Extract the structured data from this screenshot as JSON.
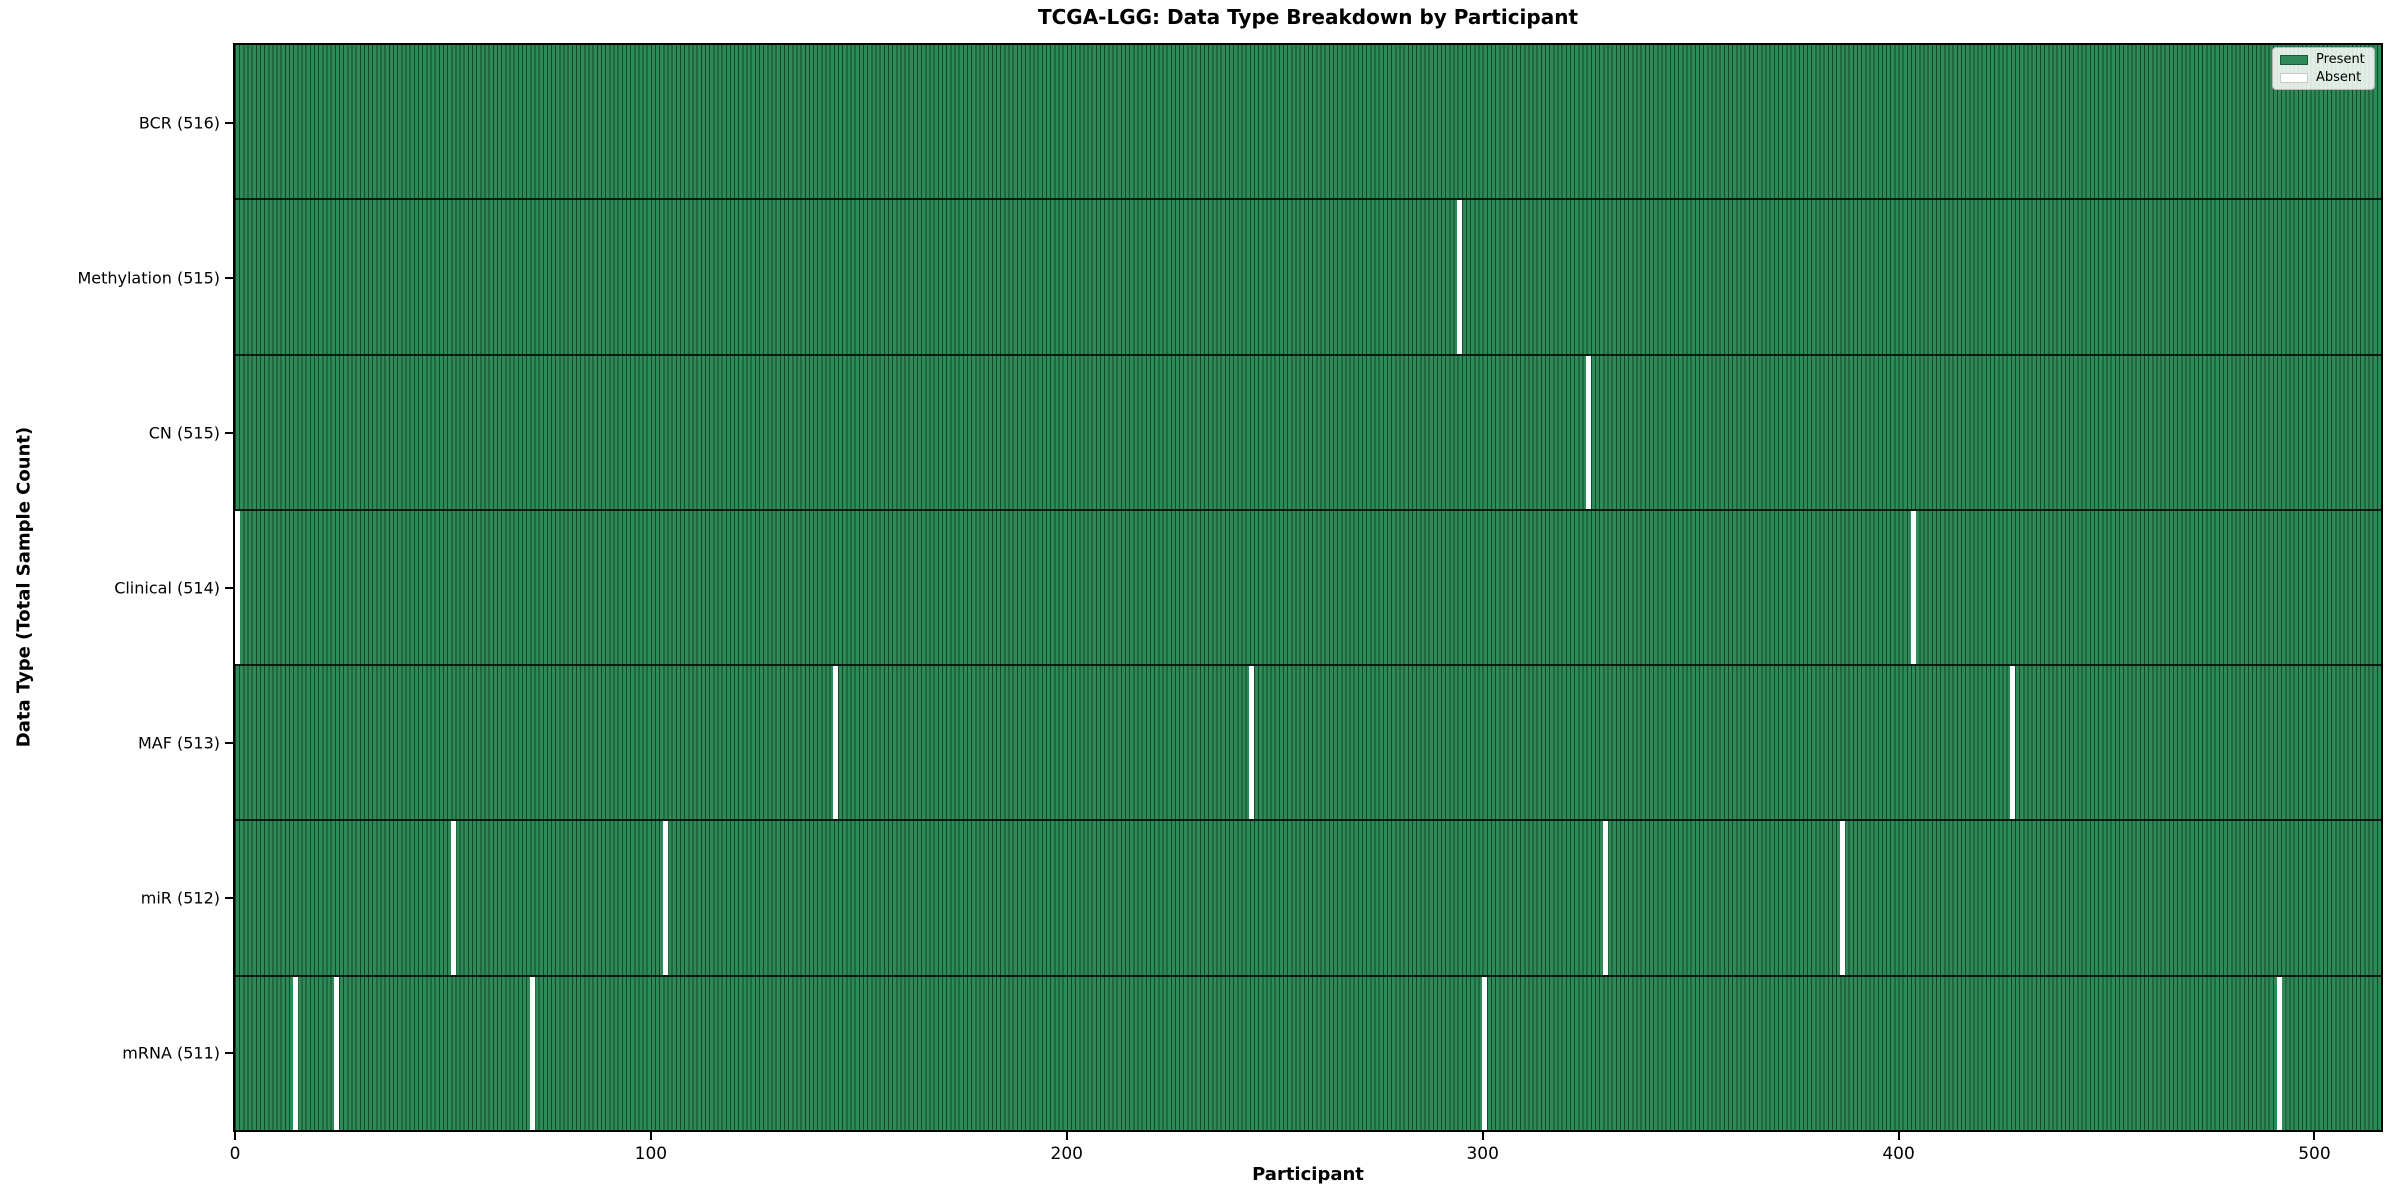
{
  "title": "TCGA-LGG: Data Type Breakdown by Participant",
  "xlabel": "Participant",
  "ylabel": "Data Type (Total Sample Count)",
  "legend": {
    "present_label": "Present",
    "absent_label": "Absent"
  },
  "colors": {
    "present": "#2E8B57",
    "absent": "#FFFFFF",
    "bar_edge": "rgba(0,0,0,0.5)",
    "spine": "#000000"
  },
  "x_tick_labels": [
    "0",
    "100",
    "200",
    "300",
    "400",
    "500"
  ],
  "chart_data": {
    "type": "heatmap",
    "title": "TCGA-LGG: Data Type Breakdown by Participant",
    "xlabel": "Participant",
    "ylabel": "Data Type (Total Sample Count)",
    "x_range": [
      0,
      516
    ],
    "x_ticks": [
      0,
      100,
      200,
      300,
      400,
      500
    ],
    "legend_entries": [
      "Present",
      "Absent"
    ],
    "legend_position": "upper right",
    "grid": false,
    "rows": [
      {
        "data_type": "BCR",
        "label": "BCR (516)",
        "total": 516,
        "absent_participants": []
      },
      {
        "data_type": "Methylation",
        "label": "Methylation (515)",
        "total": 515,
        "absent_participants": [
          294
        ]
      },
      {
        "data_type": "CN",
        "label": "CN (515)",
        "total": 515,
        "absent_participants": [
          325
        ]
      },
      {
        "data_type": "Clinical",
        "label": "Clinical (514)",
        "total": 514,
        "absent_participants": [
          0,
          403
        ]
      },
      {
        "data_type": "MAF",
        "label": "MAF (513)",
        "total": 513,
        "absent_participants": [
          144,
          244,
          427
        ]
      },
      {
        "data_type": "miR",
        "label": "miR (512)",
        "total": 512,
        "absent_participants": [
          52,
          103,
          329,
          386
        ]
      },
      {
        "data_type": "mRNA",
        "label": "mRNA (511)",
        "total": 511,
        "absent_participants": [
          14,
          24,
          71,
          300,
          491
        ]
      }
    ]
  }
}
